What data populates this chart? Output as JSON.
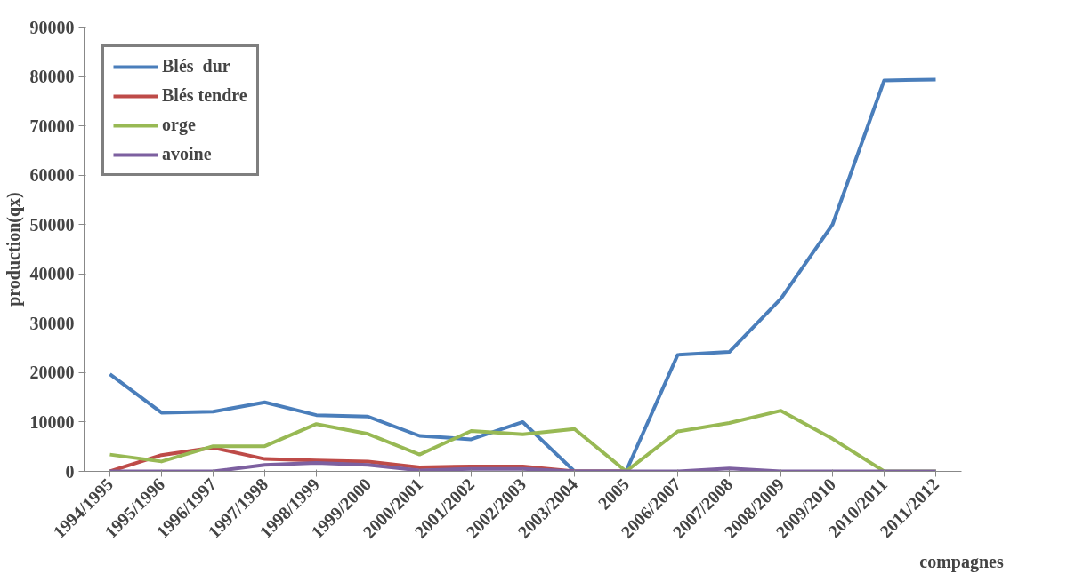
{
  "chart_data": {
    "type": "line",
    "xlabel": "compagnes",
    "ylabel": "production(qx)",
    "categories": [
      "1994/1995",
      "1995/1996",
      "1996/1997",
      "1997/1998",
      "1998/1999",
      "1999/2000",
      "2000/2001",
      "2001/2002",
      "2002/2003",
      "2003/2004",
      "2005",
      "2006/2007",
      "2007/2008",
      "2008/2009",
      "2009/2010",
      "2010/2011",
      "2011/2012"
    ],
    "series": [
      {
        "name": "Blés  dur",
        "color": "#4a7ebb",
        "values": [
          19700,
          11900,
          12100,
          14000,
          11400,
          11100,
          7200,
          6500,
          10000,
          0,
          0,
          23600,
          24200,
          35000,
          50000,
          79200,
          79400
        ]
      },
      {
        "name": "Blés tendre",
        "color": "#be4b48",
        "values": [
          0,
          3300,
          4800,
          2500,
          2200,
          2000,
          800,
          1000,
          1000,
          0,
          0,
          null,
          null,
          null,
          null,
          null,
          null
        ]
      },
      {
        "name": "orge",
        "color": "#98b954",
        "values": [
          3400,
          2000,
          5100,
          5100,
          9600,
          7600,
          3400,
          8200,
          7500,
          8600,
          0,
          8100,
          9800,
          12300,
          6600,
          0,
          0
        ]
      },
      {
        "name": "avoine",
        "color": "#7d60a0",
        "values": [
          0,
          0,
          0,
          1300,
          1700,
          1300,
          200,
          500,
          500,
          0,
          0,
          0,
          600,
          0,
          0,
          0,
          0
        ]
      }
    ],
    "ylim": [
      0,
      90000
    ],
    "yticks": [
      0,
      10000,
      20000,
      30000,
      40000,
      50000,
      60000,
      70000,
      80000,
      90000
    ],
    "grid": false,
    "legend": "top left",
    "marker": "none",
    "line_style": "solid"
  }
}
